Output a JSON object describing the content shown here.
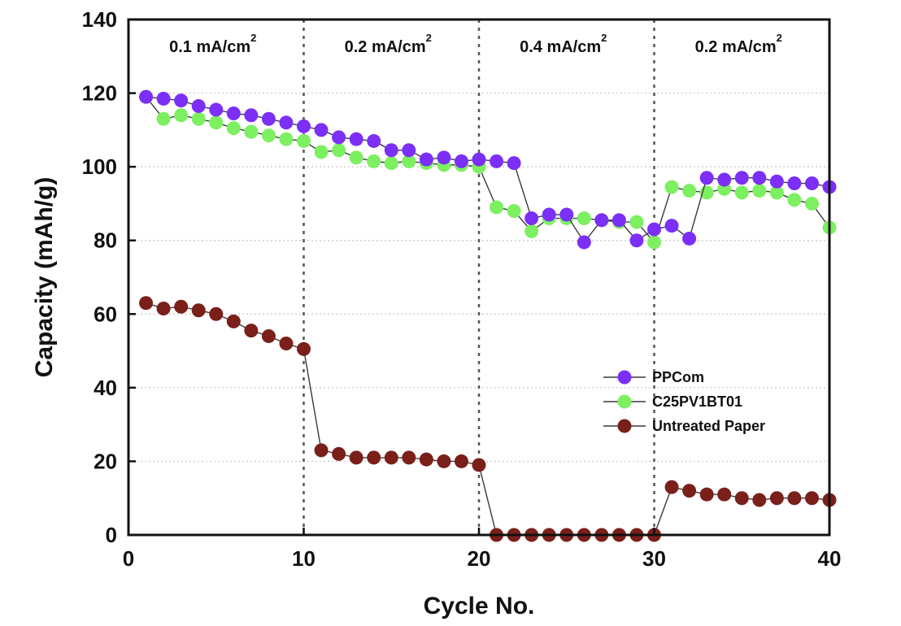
{
  "chart_data": {
    "type": "scatter",
    "xlabel": "Cycle No.",
    "ylabel": "Capacity (mAh/g)",
    "xlim": [
      0,
      40
    ],
    "ylim": [
      0,
      140
    ],
    "xticks": [
      0,
      10,
      20,
      30,
      40
    ],
    "yticks": [
      0,
      20,
      40,
      60,
      80,
      100,
      120,
      140
    ],
    "grid": "horizontal dotted",
    "legend_position": "right, middle",
    "region_dividers": [
      10,
      20,
      30
    ],
    "regions": [
      {
        "label": "0.1 mA/cm",
        "sup": "2",
        "x_start": 0,
        "x_end": 10
      },
      {
        "label": "0.2 mA/cm",
        "sup": "2",
        "x_start": 10,
        "x_end": 20
      },
      {
        "label": "0.4 mA/cm",
        "sup": "2",
        "x_start": 20,
        "x_end": 30
      },
      {
        "label": "0.2 mA/cm",
        "sup": "2",
        "x_start": 30,
        "x_end": 40
      }
    ],
    "series": [
      {
        "name": "PPCom",
        "color": "#7b2ff7",
        "x": [
          1,
          2,
          3,
          4,
          5,
          6,
          7,
          8,
          9,
          10,
          11,
          12,
          13,
          14,
          15,
          16,
          17,
          18,
          19,
          20,
          21,
          22,
          23,
          24,
          25,
          26,
          27,
          28,
          29,
          30,
          31,
          32,
          33,
          34,
          35,
          36,
          37,
          38,
          39,
          40
        ],
        "y": [
          119,
          118.5,
          118,
          116.5,
          115.5,
          114.5,
          114,
          113,
          112,
          111,
          110,
          108,
          107.5,
          107,
          104.5,
          104.5,
          102,
          102.5,
          101.5,
          102,
          101.5,
          101,
          86,
          87,
          87,
          79.5,
          85.5,
          85.5,
          80,
          83,
          84,
          80.5,
          97,
          96.5,
          97,
          97,
          96,
          95.5,
          95.5,
          94.5
        ]
      },
      {
        "name": "C25PV1BT01",
        "color": "#7cf060",
        "x": [
          1,
          2,
          3,
          4,
          5,
          6,
          7,
          8,
          9,
          10,
          11,
          12,
          13,
          14,
          15,
          16,
          17,
          18,
          19,
          20,
          21,
          22,
          23,
          24,
          25,
          26,
          27,
          28,
          29,
          30,
          31,
          32,
          33,
          34,
          35,
          36,
          37,
          38,
          39,
          40
        ],
        "y": [
          119,
          113,
          114,
          113,
          112,
          110.5,
          109.5,
          108.5,
          107.5,
          107,
          104,
          104.5,
          102.5,
          101.5,
          101,
          101.5,
          101,
          100.5,
          100.5,
          100,
          89,
          88,
          82.5,
          86,
          86,
          86,
          85.5,
          85,
          85,
          79.5,
          94.5,
          93.5,
          93,
          94,
          93,
          93.5,
          93,
          91,
          90,
          83.5
        ]
      },
      {
        "name": "Untreated Paper",
        "color": "#7a1f1a",
        "x": [
          1,
          2,
          3,
          4,
          5,
          6,
          7,
          8,
          9,
          10,
          11,
          12,
          13,
          14,
          15,
          16,
          17,
          18,
          19,
          20,
          21,
          22,
          23,
          24,
          25,
          26,
          27,
          28,
          29,
          30,
          31,
          32,
          33,
          34,
          35,
          36,
          37,
          38,
          39,
          40
        ],
        "y": [
          63,
          61.5,
          62,
          61,
          60,
          58,
          55.5,
          54,
          52,
          50.5,
          23,
          22,
          21,
          21,
          21,
          21,
          20.5,
          20,
          20,
          19,
          0,
          0,
          0,
          0,
          0,
          0,
          0,
          0,
          0,
          0,
          13,
          12,
          11,
          11,
          10,
          9.5,
          10,
          10,
          10,
          9.5
        ]
      }
    ]
  }
}
